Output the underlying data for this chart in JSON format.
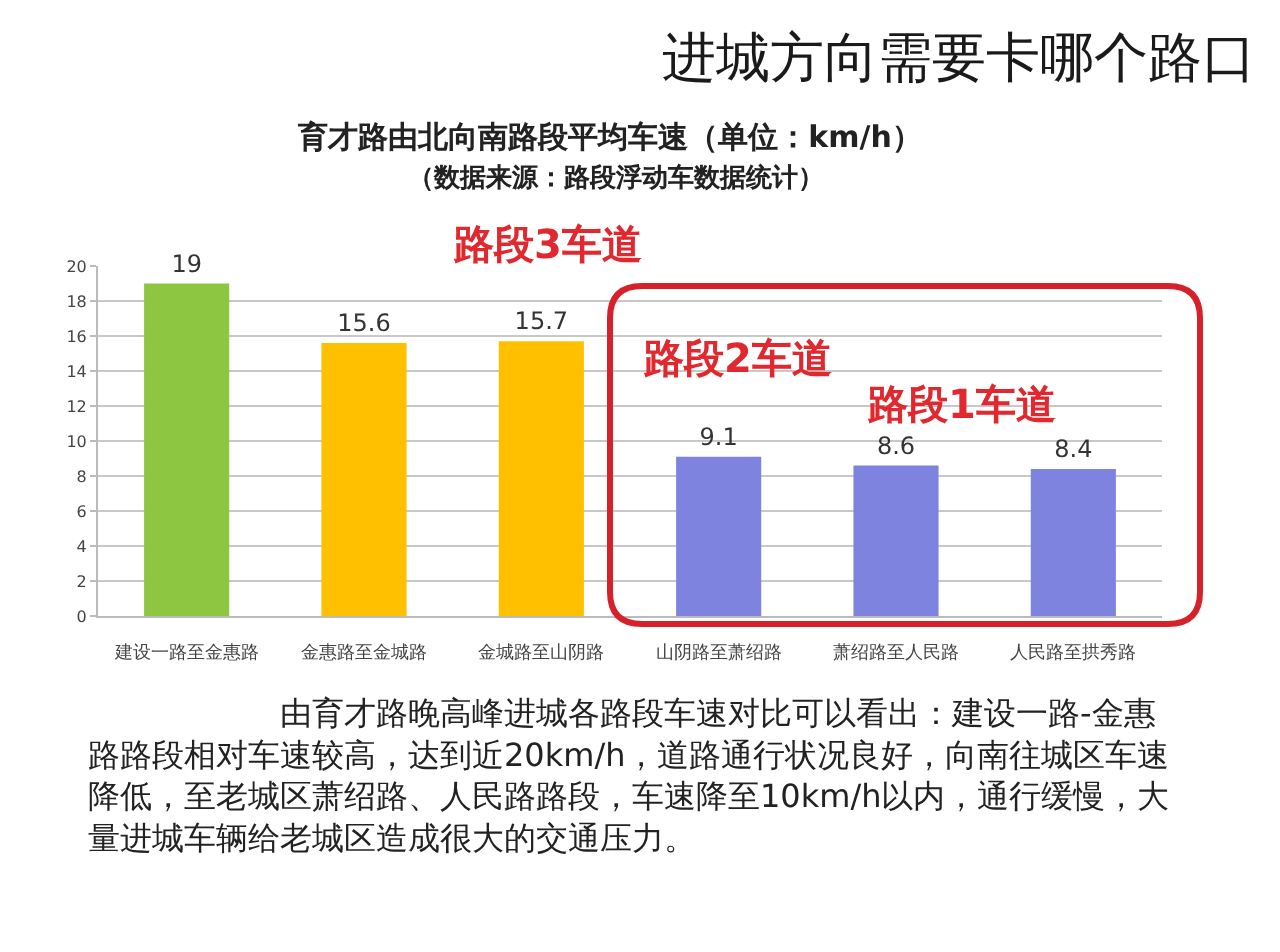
{
  "chart_data": {
    "type": "bar",
    "title": "育才路由北向南路段平均车速（单位：km/h）",
    "subtitle": "（数据来源：路段浮动车数据统计）",
    "categories": [
      "建设一路至金惠路",
      "金惠路至金城路",
      "金城路至山阴路",
      "山阴路至萧绍路",
      "萧绍路至人民路",
      "人民路至拱秀路"
    ],
    "values": [
      19,
      15.6,
      15.7,
      9.1,
      8.6,
      8.4
    ],
    "colors": [
      "#8dc641",
      "#ffc000",
      "#ffc000",
      "#7f83e0",
      "#7f83e0",
      "#7f83e0"
    ],
    "data_labels": true,
    "ylim": [
      0,
      20
    ],
    "yticks": [
      0,
      2,
      4,
      6,
      8,
      10,
      12,
      14,
      16,
      18,
      20
    ],
    "grid": "y",
    "annotations": [
      "进城方向需要卡哪个路口",
      "路段3车道",
      "路段2车道",
      "路段1车道",
      "由育才路晚高峰进城各路段车速对比可以看出：建设一路-金惠路路段相对车速较高，达到近20km/h，道路通行状况良好，向南往城区车速降低，至老城区萧绍路、人民路路段，车速降至10km/h以内，通行缓慢，大量进城车辆给老城区造成很大的交通压力。"
    ]
  }
}
